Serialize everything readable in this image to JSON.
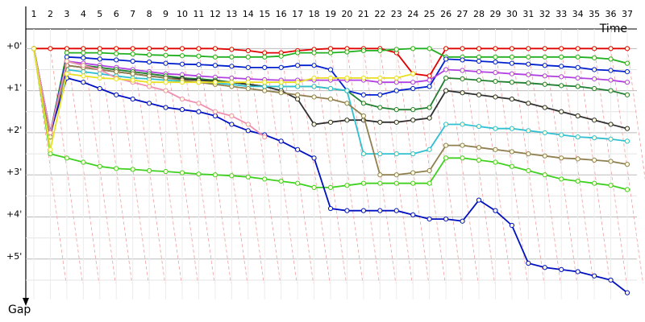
{
  "chart_data": {
    "type": "line",
    "x_label": "Time",
    "y_label": "Gap",
    "categories": [
      "1",
      "2",
      "3",
      "4",
      "5",
      "6",
      "7",
      "8",
      "9",
      "10",
      "11",
      "12",
      "13",
      "14",
      "15",
      "16",
      "17",
      "18",
      "19",
      "20",
      "21",
      "22",
      "23",
      "24",
      "25",
      "26",
      "27",
      "28",
      "29",
      "30",
      "31",
      "32",
      "33",
      "34",
      "35",
      "36",
      "37"
    ],
    "ylim": [
      -0.58,
      5.96
    ],
    "inverted": true,
    "grid": true,
    "yticks": [
      {
        "value": 0,
        "label": "+0'"
      },
      {
        "value": 1,
        "label": "+1'"
      },
      {
        "value": 2,
        "label": "+2'"
      },
      {
        "value": 3,
        "label": "+3'"
      },
      {
        "value": 4,
        "label": "+4'"
      },
      {
        "value": 5,
        "label": "+5'"
      }
    ],
    "series": [
      {
        "color": "#e00000",
        "values": [
          0,
          0,
          0,
          0,
          0,
          0,
          0,
          0,
          0,
          0,
          0,
          0,
          0.02,
          0.05,
          0.1,
          0.1,
          0.05,
          0.02,
          0,
          0,
          0,
          0,
          0.1,
          0.6,
          0.65,
          0,
          0,
          0,
          0,
          0,
          0,
          0,
          0,
          0,
          0,
          0,
          0
        ]
      },
      {
        "color": "#20b020",
        "values": [
          0,
          2.0,
          0.1,
          0.1,
          0.1,
          0.12,
          0.13,
          0.15,
          0.16,
          0.17,
          0.18,
          0.2,
          0.2,
          0.2,
          0.2,
          0.18,
          0.1,
          0.1,
          0.1,
          0.08,
          0.05,
          0.05,
          0.02,
          0,
          0,
          0.2,
          0.2,
          0.2,
          0.2,
          0.2,
          0.2,
          0.2,
          0.2,
          0.2,
          0.22,
          0.25,
          0.35
        ]
      },
      {
        "color": "#0020d0",
        "values": [
          0,
          2.0,
          0.2,
          0.22,
          0.25,
          0.27,
          0.3,
          0.32,
          0.35,
          0.37,
          0.38,
          0.4,
          0.42,
          0.45,
          0.45,
          0.45,
          0.4,
          0.4,
          0.5,
          1.0,
          1.1,
          1.1,
          1.0,
          0.95,
          0.9,
          0.25,
          0.27,
          0.3,
          0.32,
          0.35,
          0.37,
          0.4,
          0.42,
          0.45,
          0.5,
          0.52,
          0.55
        ]
      },
      {
        "color": "#b040e0",
        "values": [
          0,
          2.0,
          0.3,
          0.35,
          0.4,
          0.45,
          0.5,
          0.55,
          0.6,
          0.62,
          0.65,
          0.68,
          0.7,
          0.72,
          0.74,
          0.75,
          0.75,
          0.75,
          0.75,
          0.75,
          0.75,
          0.8,
          0.8,
          0.8,
          0.75,
          0.5,
          0.52,
          0.55,
          0.57,
          0.6,
          0.62,
          0.65,
          0.67,
          0.7,
          0.72,
          0.75,
          0.8
        ]
      },
      {
        "color": "#208030",
        "values": [
          0,
          2.1,
          0.3,
          0.4,
          0.45,
          0.5,
          0.55,
          0.6,
          0.65,
          0.7,
          0.72,
          0.75,
          0.8,
          0.85,
          0.9,
          0.9,
          0.9,
          0.9,
          0.95,
          1.0,
          1.3,
          1.4,
          1.45,
          1.45,
          1.4,
          0.7,
          0.72,
          0.75,
          0.78,
          0.8,
          0.82,
          0.85,
          0.88,
          0.9,
          0.95,
          1.0,
          1.1
        ]
      },
      {
        "color": "#303030",
        "values": [
          0,
          2.0,
          0.4,
          0.45,
          0.5,
          0.55,
          0.6,
          0.65,
          0.7,
          0.72,
          0.75,
          0.78,
          0.8,
          0.85,
          0.9,
          1.0,
          1.2,
          1.8,
          1.75,
          1.7,
          1.7,
          1.75,
          1.75,
          1.7,
          1.65,
          1.0,
          1.05,
          1.1,
          1.15,
          1.2,
          1.3,
          1.4,
          1.5,
          1.6,
          1.7,
          1.8,
          1.9
        ]
      },
      {
        "color": "#30c0d0",
        "values": [
          0,
          2.0,
          0.5,
          0.55,
          0.6,
          0.65,
          0.7,
          0.72,
          0.75,
          0.78,
          0.8,
          0.82,
          0.85,
          0.9,
          0.9,
          0.9,
          0.9,
          0.9,
          0.95,
          1.0,
          2.5,
          2.5,
          2.5,
          2.5,
          2.4,
          1.8,
          1.8,
          1.85,
          1.9,
          1.9,
          1.95,
          2.0,
          2.05,
          2.1,
          2.12,
          2.15,
          2.2
        ]
      },
      {
        "color": "#908050",
        "values": [
          0,
          2.1,
          0.4,
          0.45,
          0.5,
          0.55,
          0.6,
          0.65,
          0.7,
          0.75,
          0.8,
          0.85,
          0.9,
          0.95,
          1.0,
          1.05,
          1.1,
          1.15,
          1.2,
          1.3,
          1.6,
          3.0,
          3.0,
          2.95,
          2.9,
          2.3,
          2.3,
          2.35,
          2.4,
          2.45,
          2.5,
          2.55,
          2.6,
          2.62,
          2.65,
          2.68,
          2.75
        ]
      },
      {
        "color": "#40d020",
        "values": [
          0,
          2.5,
          2.6,
          2.7,
          2.8,
          2.85,
          2.87,
          2.9,
          2.92,
          2.95,
          2.98,
          3.0,
          3.02,
          3.05,
          3.1,
          3.15,
          3.2,
          3.3,
          3.3,
          3.25,
          3.2,
          3.2,
          3.2,
          3.2,
          3.2,
          2.6,
          2.6,
          2.65,
          2.7,
          2.8,
          2.9,
          3.0,
          3.1,
          3.15,
          3.2,
          3.25,
          3.35
        ]
      },
      {
        "color": "#0010c0",
        "values": [
          0,
          2.0,
          0.7,
          0.8,
          0.95,
          1.1,
          1.2,
          1.3,
          1.4,
          1.45,
          1.5,
          1.6,
          1.8,
          1.95,
          2.05,
          2.2,
          2.4,
          2.6,
          3.8,
          3.85,
          3.85,
          3.85,
          3.85,
          3.95,
          4.05,
          4.05,
          4.1,
          3.6,
          3.85,
          4.2,
          5.1,
          5.2,
          5.25,
          5.3,
          5.4,
          5.5,
          5.8
        ]
      },
      {
        "color": "#f090b0",
        "values": [
          0,
          2.0,
          0.3,
          0.4,
          0.5,
          0.7,
          0.8,
          0.9,
          1.0,
          1.2,
          1.3,
          1.5,
          1.6,
          1.8,
          2.1,
          null,
          null,
          null,
          null,
          null,
          null,
          null,
          null,
          null,
          null,
          null,
          null,
          null,
          null,
          null,
          null,
          null,
          null,
          null,
          null,
          null,
          null
        ]
      },
      {
        "color": "#e8e020",
        "values": [
          0,
          2.4,
          0.6,
          0.65,
          0.7,
          0.72,
          0.75,
          0.8,
          0.8,
          0.8,
          0.8,
          0.8,
          0.8,
          0.8,
          0.8,
          0.8,
          0.8,
          0.7,
          0.7,
          0.7,
          0.7,
          0.7,
          0.7,
          0.6,
          null,
          null,
          null,
          null,
          null,
          null,
          null,
          null,
          null,
          null,
          null,
          null,
          null
        ]
      }
    ]
  }
}
